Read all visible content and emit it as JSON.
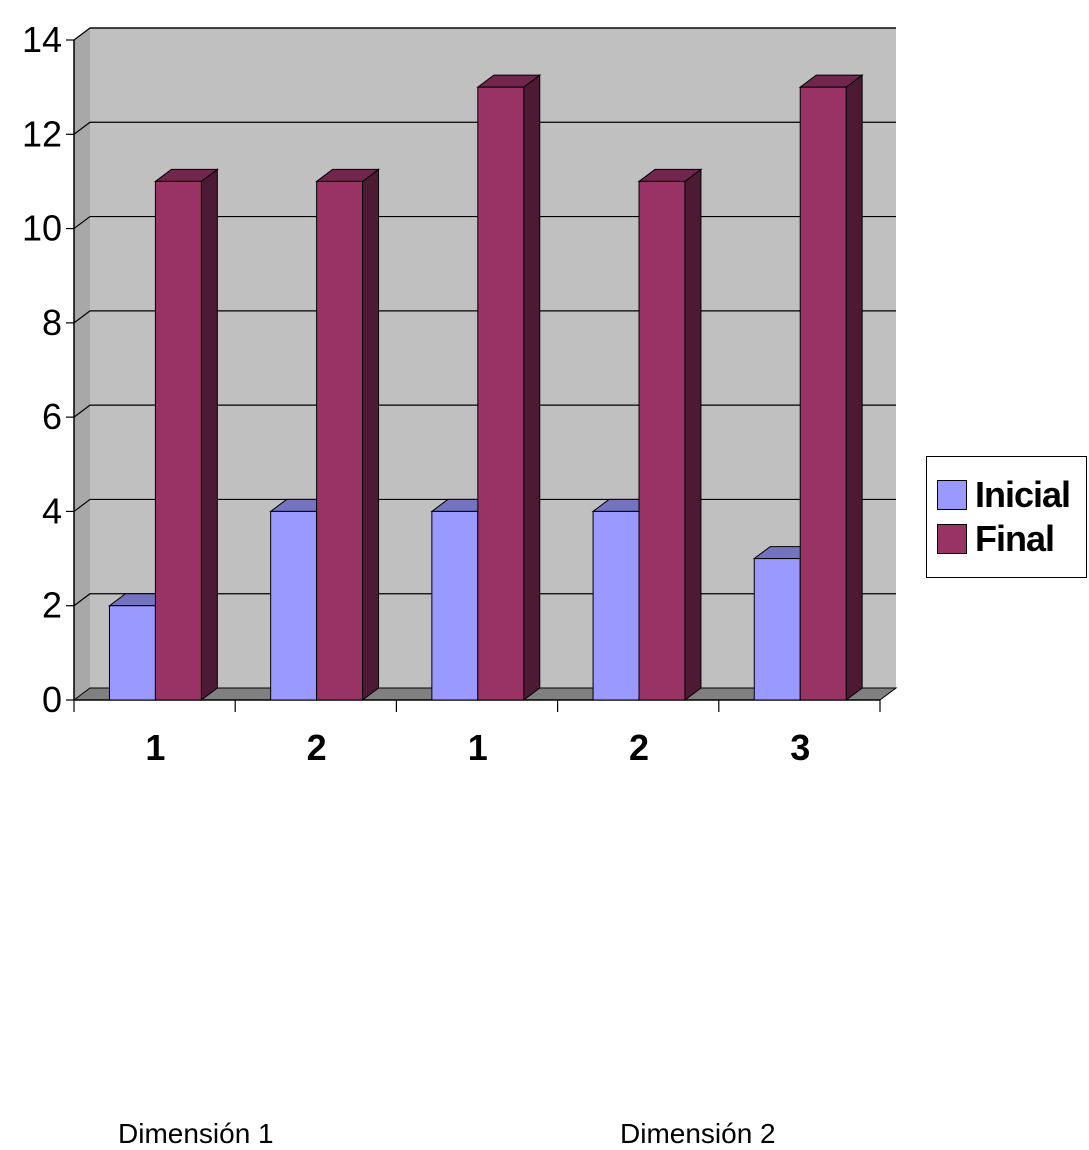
{
  "chart_data": {
    "type": "bar",
    "categories": [
      "1",
      "2",
      "1",
      "2",
      "3"
    ],
    "category_groups": [
      {
        "label": "Dimensión 1"
      },
      {
        "label": "Dimensión 2"
      }
    ],
    "series": [
      {
        "name": "Inicial",
        "values": [
          2,
          4,
          4,
          4,
          3
        ],
        "color": "#9999ff"
      },
      {
        "name": "Final",
        "values": [
          11,
          11,
          13,
          11,
          13
        ],
        "color": "#993366"
      }
    ],
    "ylim": [
      0,
      14
    ],
    "y_ticks": [
      "0",
      "2",
      "4",
      "6",
      "8",
      "10",
      "12",
      "14"
    ],
    "grid": true,
    "legend_position": "right",
    "three_d": true,
    "plot_background": "#c0c0c0"
  }
}
